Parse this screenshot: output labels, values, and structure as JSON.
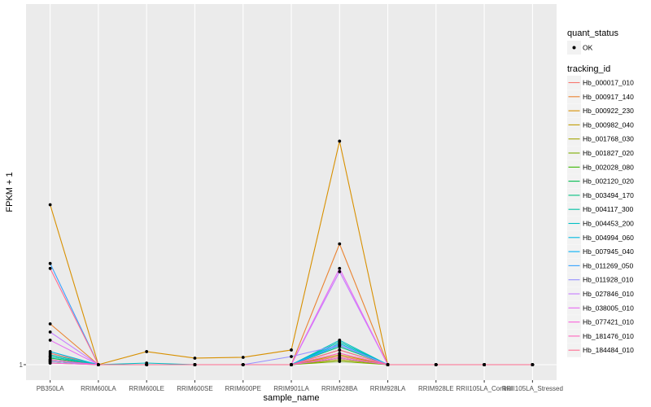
{
  "chart_data": {
    "type": "line",
    "xlabel": "sample_name",
    "ylabel": "FPKM + 1",
    "y_tick_labels": [
      "1"
    ],
    "categories": [
      "PB350LA",
      "RRIM600LA",
      "RRIM600LE",
      "RRIM600SE",
      "RRIM600PE",
      "RRIM901LA",
      "RRIM928BA",
      "RRIM928LA",
      "RRIM928LE",
      "RRII105LA_Control",
      "RRII105LA_Stressed"
    ],
    "ylim": [
      1,
      3.1
    ],
    "grid": true,
    "legend_position": "right",
    "point_legend": {
      "title": "quant_status",
      "entries": [
        {
          "label": "OK",
          "icon": "filled-circle"
        }
      ]
    },
    "line_legend_title": "tracking_id",
    "series": [
      {
        "name": "Hb_000017_010",
        "color": "#F8766D",
        "values": [
          1.07,
          1,
          1,
          1,
          1,
          1,
          1.05,
          1,
          1,
          1,
          1
        ]
      },
      {
        "name": "Hb_000917_140",
        "color": "#EA8331",
        "values": [
          1.25,
          1,
          1,
          1,
          1,
          1,
          1.74,
          1,
          1,
          1,
          1
        ]
      },
      {
        "name": "Hb_000922_230",
        "color": "#D89000",
        "values": [
          1.98,
          1,
          1.08,
          1.04,
          1.045,
          1.09,
          2.37,
          1,
          1,
          1,
          1
        ]
      },
      {
        "name": "Hb_000982_040",
        "color": "#C09B00",
        "values": [
          1.03,
          1,
          1,
          1,
          1,
          1,
          1.06,
          1,
          1,
          1,
          1
        ]
      },
      {
        "name": "Hb_001768_030",
        "color": "#A3A500",
        "values": [
          1.02,
          1,
          1,
          1,
          1,
          1,
          1.03,
          1,
          1,
          1,
          1
        ]
      },
      {
        "name": "Hb_001827_020",
        "color": "#7CAE00",
        "values": [
          1.01,
          1,
          1,
          1,
          1,
          1,
          1.02,
          1,
          1,
          1,
          1
        ]
      },
      {
        "name": "Hb_002028_080",
        "color": "#39B600",
        "values": [
          1.02,
          1,
          1,
          1,
          1,
          1,
          1.09,
          1,
          1,
          1,
          1
        ]
      },
      {
        "name": "Hb_002120_020",
        "color": "#00BB4E",
        "values": [
          1.04,
          1,
          1,
          1,
          1,
          1,
          1.04,
          1,
          1,
          1,
          1
        ]
      },
      {
        "name": "Hb_003494_170",
        "color": "#00BF7D",
        "values": [
          1.05,
          1,
          1,
          1,
          1,
          1,
          1.11,
          1,
          1,
          1,
          1
        ]
      },
      {
        "name": "Hb_004117_300",
        "color": "#00C1A3",
        "values": [
          1.06,
          1,
          1,
          1,
          1,
          1,
          1.14,
          1,
          1,
          1,
          1
        ]
      },
      {
        "name": "Hb_004453_200",
        "color": "#00BFC4",
        "values": [
          1.05,
          1,
          1.01,
          1,
          1,
          1,
          1.15,
          1,
          1,
          1,
          1
        ]
      },
      {
        "name": "Hb_004994_060",
        "color": "#00BAE0",
        "values": [
          1.08,
          1,
          1,
          1,
          1,
          1,
          1.13,
          1,
          1,
          1,
          1
        ]
      },
      {
        "name": "Hb_007945_040",
        "color": "#00B0F6",
        "values": [
          1.03,
          1,
          1,
          1,
          1,
          1,
          1.12,
          1,
          1,
          1,
          1
        ]
      },
      {
        "name": "Hb_011269_050",
        "color": "#35A2FF",
        "values": [
          1.62,
          1,
          1,
          1,
          1,
          1,
          1.12,
          1,
          1,
          1,
          1
        ]
      },
      {
        "name": "Hb_011928_010",
        "color": "#9590FF",
        "values": [
          1.02,
          1,
          1,
          1,
          1,
          1.05,
          1.12,
          1,
          1,
          1,
          1
        ]
      },
      {
        "name": "Hb_027846_010",
        "color": "#C77CFF",
        "values": [
          1.2,
          1,
          1,
          1,
          1,
          1,
          1.57,
          1,
          1,
          1,
          1
        ]
      },
      {
        "name": "Hb_038005_010",
        "color": "#E76BF3",
        "values": [
          1.15,
          1,
          1,
          1,
          1,
          1,
          1.59,
          1,
          1,
          1,
          1
        ]
      },
      {
        "name": "Hb_077421_010",
        "color": "#FA62DB",
        "values": [
          1.01,
          1,
          1,
          1,
          1,
          1,
          1.04,
          1,
          1,
          1,
          1
        ]
      },
      {
        "name": "Hb_181476_010",
        "color": "#FF62BC",
        "values": [
          1.03,
          1,
          1,
          1,
          1,
          1,
          1.07,
          1,
          1,
          1,
          1
        ]
      },
      {
        "name": "Hb_184484_010",
        "color": "#FF6C91",
        "values": [
          1.59,
          1,
          1,
          1,
          1,
          1,
          1.09,
          1,
          1,
          1,
          1
        ]
      }
    ]
  }
}
